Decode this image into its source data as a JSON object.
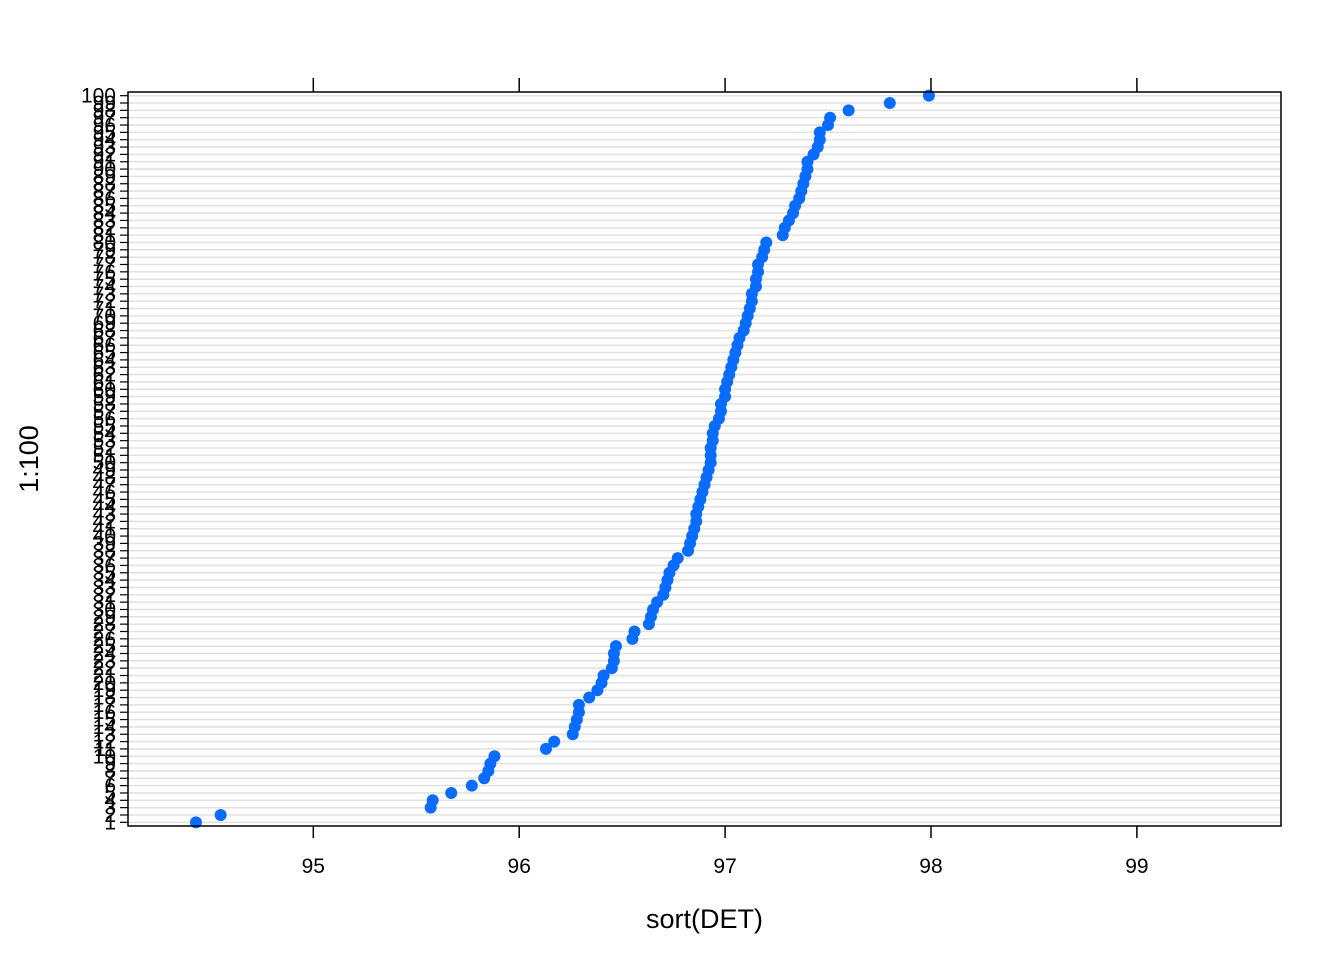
{
  "chart_data": {
    "type": "scatter",
    "title": "",
    "xlabel": "sort(DET)",
    "ylabel": "1:100",
    "xlim": [
      94.1,
      99.7
    ],
    "ylim": [
      0.5,
      100.5
    ],
    "x_ticks": [
      95,
      96,
      97,
      98,
      99
    ],
    "y_tick_labels": [
      "1",
      "2",
      "3",
      "4",
      "5",
      "6",
      "7",
      "8",
      "9",
      "10",
      "11",
      "12",
      "13",
      "14",
      "15",
      "16",
      "17",
      "18",
      "19",
      "20",
      "21",
      "22",
      "23",
      "24",
      "25",
      "26",
      "27",
      "28",
      "29",
      "30",
      "31",
      "32",
      "33",
      "34",
      "35",
      "36",
      "37",
      "38",
      "39",
      "40",
      "41",
      "42",
      "43",
      "44",
      "45",
      "46",
      "47",
      "48",
      "49",
      "50",
      "51",
      "52",
      "53",
      "54",
      "55",
      "56",
      "57",
      "58",
      "59",
      "60",
      "61",
      "62",
      "63",
      "64",
      "65",
      "66",
      "67",
      "68",
      "69",
      "70",
      "71",
      "72",
      "73",
      "74",
      "75",
      "76",
      "77",
      "78",
      "79",
      "80",
      "81",
      "82",
      "83",
      "84",
      "85",
      "86",
      "87",
      "88",
      "89",
      "90",
      "91",
      "92",
      "93",
      "94",
      "95",
      "96",
      "97",
      "98",
      "99",
      "100"
    ],
    "grid": true,
    "point_color": "#0a6cff",
    "grid_color": "#e3e3e3",
    "series": [
      {
        "x": [
          94.43,
          94.55,
          95.57,
          95.58,
          95.67,
          95.77,
          95.83,
          95.85,
          95.86,
          95.88,
          96.13,
          96.17,
          96.26,
          96.27,
          96.28,
          96.29,
          96.29,
          96.34,
          96.38,
          96.4,
          96.41,
          96.45,
          96.46,
          96.46,
          96.47,
          96.55,
          96.56,
          96.63,
          96.64,
          96.65,
          96.67,
          96.7,
          96.71,
          96.72,
          96.73,
          96.75,
          96.77,
          96.82,
          96.83,
          96.84,
          96.85,
          96.86,
          96.86,
          96.87,
          96.88,
          96.89,
          96.9,
          96.91,
          96.92,
          96.93,
          96.93,
          96.93,
          96.94,
          96.94,
          96.95,
          96.97,
          96.98,
          96.98,
          97.0,
          97.0,
          97.01,
          97.02,
          97.03,
          97.04,
          97.05,
          97.06,
          97.07,
          97.09,
          97.1,
          97.11,
          97.12,
          97.13,
          97.13,
          97.15,
          97.15,
          97.16,
          97.16,
          97.18,
          97.19,
          97.2,
          97.28,
          97.29,
          97.31,
          97.33,
          97.34,
          97.36,
          97.37,
          97.38,
          97.39,
          97.4,
          97.4,
          97.43,
          97.45,
          97.46,
          97.46,
          97.5,
          97.51,
          97.6,
          97.8,
          97.99
        ],
        "y": [
          1,
          2,
          3,
          4,
          5,
          6,
          7,
          8,
          9,
          10,
          11,
          12,
          13,
          14,
          15,
          16,
          17,
          18,
          19,
          20,
          21,
          22,
          23,
          24,
          25,
          26,
          27,
          28,
          29,
          30,
          31,
          32,
          33,
          34,
          35,
          36,
          37,
          38,
          39,
          40,
          41,
          42,
          43,
          44,
          45,
          46,
          47,
          48,
          49,
          50,
          51,
          52,
          53,
          54,
          55,
          56,
          57,
          58,
          59,
          60,
          61,
          62,
          63,
          64,
          65,
          66,
          67,
          68,
          69,
          70,
          71,
          72,
          73,
          74,
          75,
          76,
          77,
          78,
          79,
          80,
          81,
          82,
          83,
          84,
          85,
          86,
          87,
          88,
          89,
          90,
          91,
          92,
          93,
          94,
          95,
          96,
          97,
          98,
          99,
          100
        ]
      }
    ]
  }
}
